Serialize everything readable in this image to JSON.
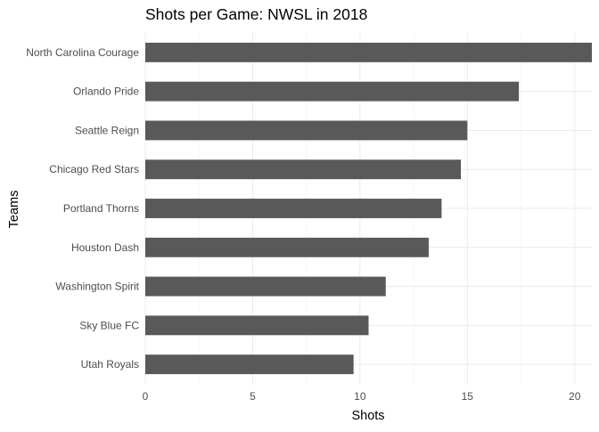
{
  "chart_data": {
    "type": "bar",
    "orientation": "horizontal",
    "title": "Shots per Game: NWSL in 2018",
    "xlabel": "Shots",
    "ylabel": "Teams",
    "categories": [
      "North Carolina Courage",
      "Orlando Pride",
      "Seattle Reign",
      "Chicago Red Stars",
      "Portland Thorns",
      "Houston Dash",
      "Washington Spirit",
      "Sky Blue FC",
      "Utah Royals"
    ],
    "values": [
      20.8,
      17.4,
      15.0,
      14.7,
      13.8,
      13.2,
      11.2,
      10.4,
      9.7
    ],
    "xlim": [
      0,
      20.8
    ],
    "xticks": [
      0,
      5,
      10,
      15,
      20
    ],
    "bar_color": "#595959",
    "grid": true
  }
}
